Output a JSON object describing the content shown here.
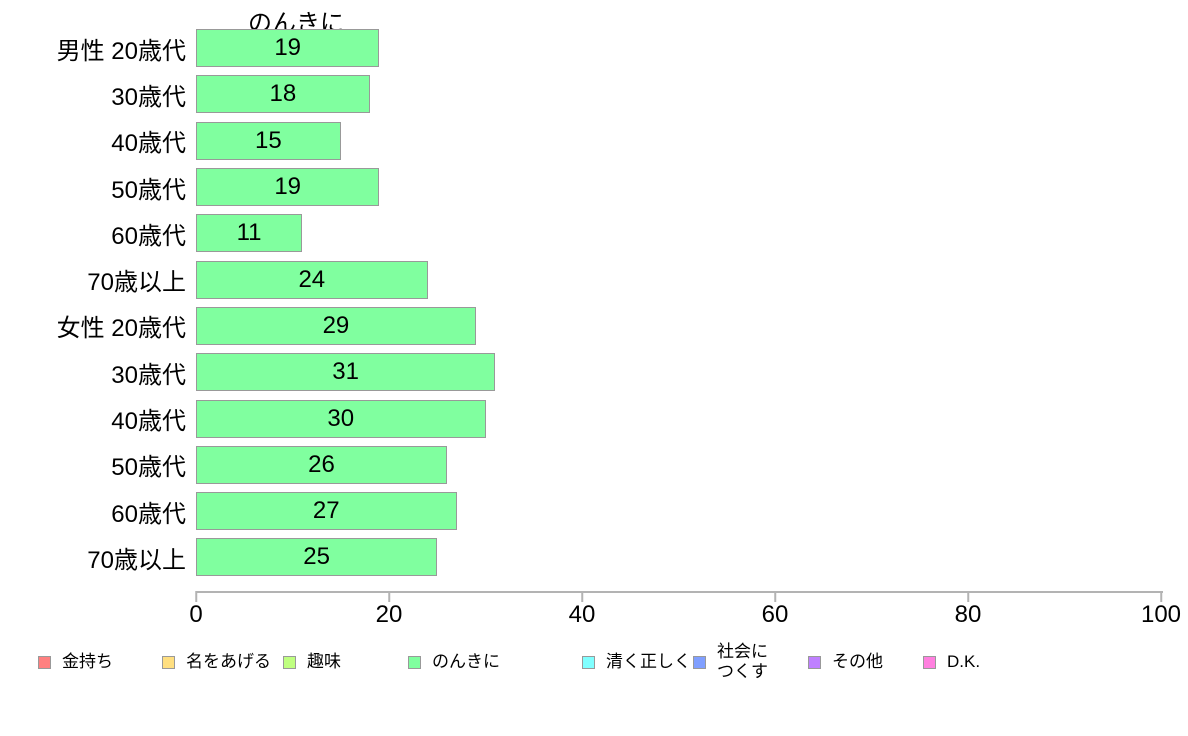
{
  "chart_data": {
    "type": "bar",
    "orientation": "horizontal",
    "title": "のんきに",
    "categories": [
      "男性 20歳代",
      "30歳代",
      "40歳代",
      "50歳代",
      "60歳代",
      "70歳以上",
      "女性 20歳代",
      "30歳代",
      "40歳代",
      "50歳代",
      "60歳代",
      "70歳以上"
    ],
    "values": [
      19,
      18,
      15,
      19,
      11,
      24,
      29,
      31,
      30,
      26,
      27,
      25
    ],
    "xlabel": "",
    "ylabel": "",
    "xlim": [
      0,
      100
    ],
    "x_ticks": [
      0,
      20,
      40,
      60,
      80,
      100
    ],
    "grid": false,
    "bar_color": "#80FF9F",
    "bar_border_color": "#999999",
    "axis_color": "#b3b3b3",
    "legend_position": "bottom",
    "legend": [
      {
        "label": "金持ち",
        "color": "#FF8080"
      },
      {
        "label": "名をあげる",
        "color": "#FFDF80"
      },
      {
        "label": "趣味",
        "color": "#BFFF80"
      },
      {
        "label": "のんきに",
        "color": "#80FF9F"
      },
      {
        "label": "清く正しく",
        "color": "#80FFFF"
      },
      {
        "label": "社会に\nつくす",
        "color": "#809FFF"
      },
      {
        "label": "その他",
        "color": "#BF80FF"
      },
      {
        "label": "D.K.",
        "color": "#FF80DF"
      }
    ]
  }
}
